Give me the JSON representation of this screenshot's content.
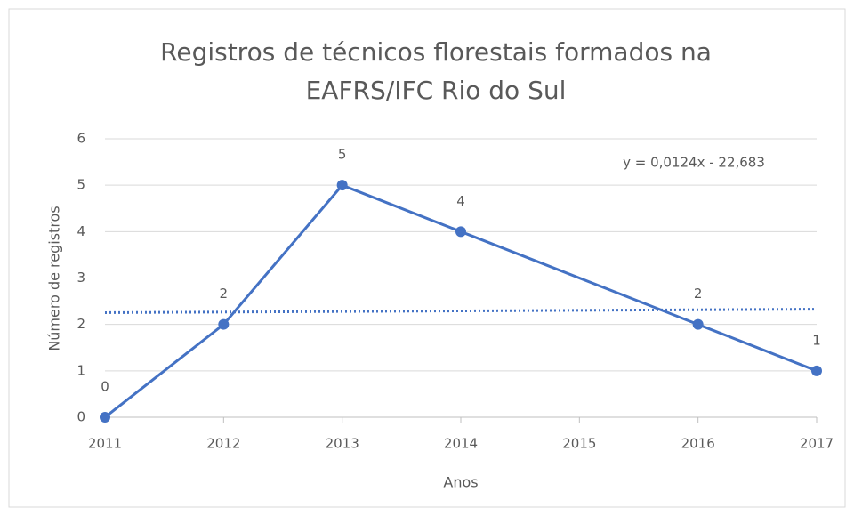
{
  "chart_data": {
    "type": "line",
    "title": [
      "Registros de técnicos florestais formados na",
      "EAFRS/IFC Rio do Sul"
    ],
    "xlabel": "Anos",
    "ylabel": "Número de registros",
    "x": [
      2011,
      2012,
      2013,
      2014,
      2016,
      2017
    ],
    "series": [
      {
        "name": "Registros",
        "color": "#4472c4",
        "values": [
          0,
          2,
          5,
          4,
          2,
          1
        ]
      }
    ],
    "trendline": {
      "label": "y = 0,0124x - 22,683",
      "slope": 0.0124,
      "intercept": -22.683,
      "color": "#4472c4"
    },
    "xlim": [
      2011,
      2017
    ],
    "xticks": [
      2011,
      2012,
      2013,
      2014,
      2015,
      2016,
      2017
    ],
    "ylim": [
      0,
      6
    ],
    "yticks": [
      0,
      1,
      2,
      3,
      4,
      5,
      6
    ],
    "grid": true
  }
}
